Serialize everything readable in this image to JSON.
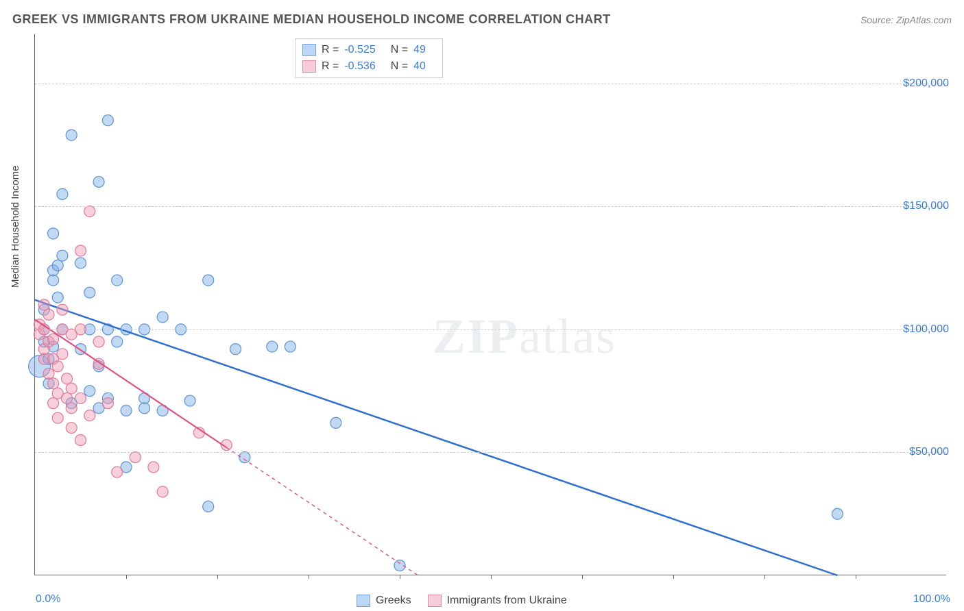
{
  "header": {
    "title": "GREEK VS IMMIGRANTS FROM UKRAINE MEDIAN HOUSEHOLD INCOME CORRELATION CHART",
    "source": "Source: ZipAtlas.com"
  },
  "watermark": {
    "zip": "ZIP",
    "atlas": "atlas"
  },
  "chart": {
    "type": "scatter",
    "ylabel": "Median Household Income",
    "xlim": [
      0,
      100
    ],
    "ylim": [
      0,
      220000
    ],
    "xtick_labels": {
      "left": "0.0%",
      "right": "100.0%"
    },
    "xtick_positions": [
      10,
      20,
      30,
      40,
      50,
      60,
      70,
      80,
      90
    ],
    "ytick_labels": [
      {
        "value": 50000,
        "label": "$50,000"
      },
      {
        "value": 100000,
        "label": "$100,000"
      },
      {
        "value": 150000,
        "label": "$150,000"
      },
      {
        "value": 200000,
        "label": "$200,000"
      }
    ],
    "grid_color": "#cccccc",
    "background_color": "#ffffff",
    "axis_color": "#666666",
    "label_fontsize": 15,
    "tick_fontsize": 16,
    "tick_color": "#3b7dd8",
    "stats_legend": {
      "rows": [
        {
          "swatch_fill": "#bcd6f5",
          "swatch_stroke": "#6fa4e6",
          "r_label": "R =",
          "r_value": "-0.525",
          "n_label": "N =",
          "n_value": "49"
        },
        {
          "swatch_fill": "#f7cdd9",
          "swatch_stroke": "#e98aa5",
          "r_label": "R =",
          "r_value": "-0.536",
          "n_label": "N =",
          "n_value": "40"
        }
      ]
    },
    "series_legend": {
      "items": [
        {
          "swatch_fill": "#bcd6f5",
          "swatch_stroke": "#6fa4e6",
          "label": "Greeks"
        },
        {
          "swatch_fill": "#f7cdd9",
          "swatch_stroke": "#e98aa5",
          "label": "Immigrants from Ukraine"
        }
      ]
    },
    "series": [
      {
        "name": "Greeks",
        "color_fill": "rgba(120,170,230,0.45)",
        "color_stroke": "#5d93d6",
        "marker_radius": 8,
        "trend": {
          "solid": {
            "x1": 0,
            "y1": 112000,
            "x2": 88,
            "y2": 0
          },
          "stroke": "#2f6fd0",
          "width": 2.5
        },
        "points": [
          {
            "x": 0.5,
            "y": 85000,
            "r": 16
          },
          {
            "x": 1,
            "y": 95000
          },
          {
            "x": 1,
            "y": 100000
          },
          {
            "x": 1,
            "y": 108000
          },
          {
            "x": 1.5,
            "y": 78000
          },
          {
            "x": 1.5,
            "y": 88000
          },
          {
            "x": 2,
            "y": 120000
          },
          {
            "x": 2,
            "y": 139000
          },
          {
            "x": 2,
            "y": 124000
          },
          {
            "x": 2,
            "y": 93000
          },
          {
            "x": 2.5,
            "y": 113000
          },
          {
            "x": 2.5,
            "y": 126000
          },
          {
            "x": 3,
            "y": 155000
          },
          {
            "x": 3,
            "y": 130000
          },
          {
            "x": 3,
            "y": 100000
          },
          {
            "x": 4,
            "y": 179000
          },
          {
            "x": 4,
            "y": 70000
          },
          {
            "x": 5,
            "y": 127000
          },
          {
            "x": 5,
            "y": 92000
          },
          {
            "x": 6,
            "y": 115000
          },
          {
            "x": 6,
            "y": 100000
          },
          {
            "x": 6,
            "y": 75000
          },
          {
            "x": 7,
            "y": 160000
          },
          {
            "x": 7,
            "y": 85000
          },
          {
            "x": 7,
            "y": 68000
          },
          {
            "x": 8,
            "y": 185000
          },
          {
            "x": 8,
            "y": 100000
          },
          {
            "x": 8,
            "y": 72000
          },
          {
            "x": 9,
            "y": 120000
          },
          {
            "x": 9,
            "y": 95000
          },
          {
            "x": 10,
            "y": 100000
          },
          {
            "x": 10,
            "y": 67000
          },
          {
            "x": 10,
            "y": 44000
          },
          {
            "x": 12,
            "y": 100000
          },
          {
            "x": 12,
            "y": 72000
          },
          {
            "x": 12,
            "y": 68000
          },
          {
            "x": 14,
            "y": 105000
          },
          {
            "x": 14,
            "y": 67000
          },
          {
            "x": 16,
            "y": 100000
          },
          {
            "x": 17,
            "y": 71000
          },
          {
            "x": 19,
            "y": 120000
          },
          {
            "x": 19,
            "y": 28000
          },
          {
            "x": 22,
            "y": 92000
          },
          {
            "x": 23,
            "y": 48000
          },
          {
            "x": 26,
            "y": 93000
          },
          {
            "x": 28,
            "y": 93000
          },
          {
            "x": 33,
            "y": 62000
          },
          {
            "x": 40,
            "y": 4000
          },
          {
            "x": 88,
            "y": 25000
          }
        ]
      },
      {
        "name": "Immigrants from Ukraine",
        "color_fill": "rgba(240,150,175,0.45)",
        "color_stroke": "#e07a98",
        "marker_radius": 8,
        "trend": {
          "solid": {
            "x1": 0,
            "y1": 104000,
            "x2": 21,
            "y2": 52000
          },
          "dashed": {
            "x1": 21,
            "y1": 52000,
            "x2": 42,
            "y2": 0
          },
          "stroke": "#e05080",
          "width": 2.2
        },
        "points": [
          {
            "x": 0.5,
            "y": 98000
          },
          {
            "x": 0.5,
            "y": 102000
          },
          {
            "x": 1,
            "y": 88000
          },
          {
            "x": 1,
            "y": 92000
          },
          {
            "x": 1,
            "y": 100000
          },
          {
            "x": 1,
            "y": 110000
          },
          {
            "x": 1.5,
            "y": 82000
          },
          {
            "x": 1.5,
            "y": 95000
          },
          {
            "x": 1.5,
            "y": 106000
          },
          {
            "x": 2,
            "y": 70000
          },
          {
            "x": 2,
            "y": 78000
          },
          {
            "x": 2,
            "y": 88000
          },
          {
            "x": 2,
            "y": 96000
          },
          {
            "x": 2.5,
            "y": 64000
          },
          {
            "x": 2.5,
            "y": 74000
          },
          {
            "x": 2.5,
            "y": 85000
          },
          {
            "x": 3,
            "y": 90000
          },
          {
            "x": 3,
            "y": 100000
          },
          {
            "x": 3,
            "y": 108000
          },
          {
            "x": 3.5,
            "y": 72000
          },
          {
            "x": 3.5,
            "y": 80000
          },
          {
            "x": 4,
            "y": 60000
          },
          {
            "x": 4,
            "y": 68000
          },
          {
            "x": 4,
            "y": 76000
          },
          {
            "x": 4,
            "y": 98000
          },
          {
            "x": 5,
            "y": 55000
          },
          {
            "x": 5,
            "y": 72000
          },
          {
            "x": 5,
            "y": 100000
          },
          {
            "x": 5,
            "y": 132000
          },
          {
            "x": 6,
            "y": 65000
          },
          {
            "x": 6,
            "y": 148000
          },
          {
            "x": 7,
            "y": 86000
          },
          {
            "x": 7,
            "y": 95000
          },
          {
            "x": 8,
            "y": 70000
          },
          {
            "x": 9,
            "y": 42000
          },
          {
            "x": 11,
            "y": 48000
          },
          {
            "x": 13,
            "y": 44000
          },
          {
            "x": 14,
            "y": 34000
          },
          {
            "x": 18,
            "y": 58000
          },
          {
            "x": 21,
            "y": 53000
          }
        ]
      }
    ]
  }
}
